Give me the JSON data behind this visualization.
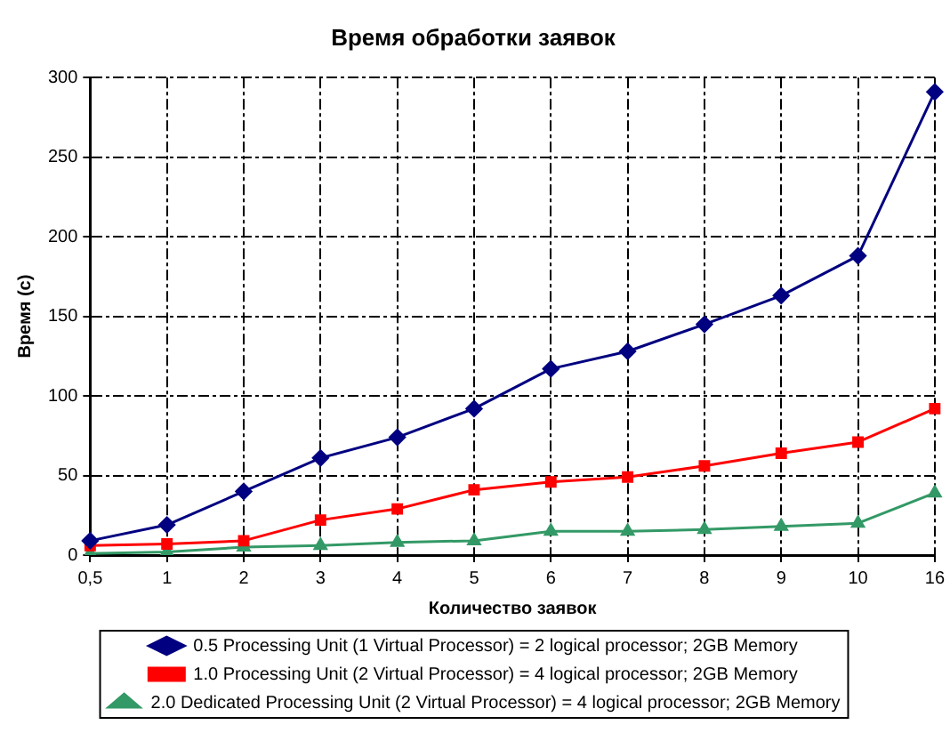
{
  "chart_data": {
    "type": "line",
    "title": "Время обработки заявок",
    "xlabel": "Количество заявок",
    "ylabel": "Время (с)",
    "categories": [
      "0,5",
      "1",
      "2",
      "3",
      "4",
      "5",
      "6",
      "7",
      "8",
      "9",
      "10",
      "16"
    ],
    "series": [
      {
        "name": "0.5 Processing Unit (1 Virtual Processor) = 2 logical processor; 2GB Memory",
        "color": "#000080",
        "marker": "diamond",
        "values": [
          9,
          19,
          40,
          61,
          74,
          92,
          117,
          128,
          145,
          163,
          188,
          291
        ]
      },
      {
        "name": "1.0 Processing Unit (2 Virtual Processor) = 4 logical processor; 2GB Memory",
        "color": "#ff0000",
        "marker": "square",
        "values": [
          6,
          7,
          9,
          22,
          29,
          41,
          46,
          49,
          56,
          64,
          71,
          92
        ]
      },
      {
        "name": "2.0 Dedicated Processing Unit (2 Virtual Processor) = 4 logical processor; 2GB Memory",
        "color": "#339966",
        "marker": "triangle",
        "values": [
          1,
          2,
          5,
          6,
          8,
          9,
          15,
          15,
          16,
          18,
          20,
          39
        ]
      }
    ],
    "ylim": [
      0,
      300
    ],
    "yticks": [
      0,
      50,
      100,
      150,
      200,
      250,
      300
    ],
    "grid": true,
    "legend": "bottom",
    "line_style": "solid"
  }
}
